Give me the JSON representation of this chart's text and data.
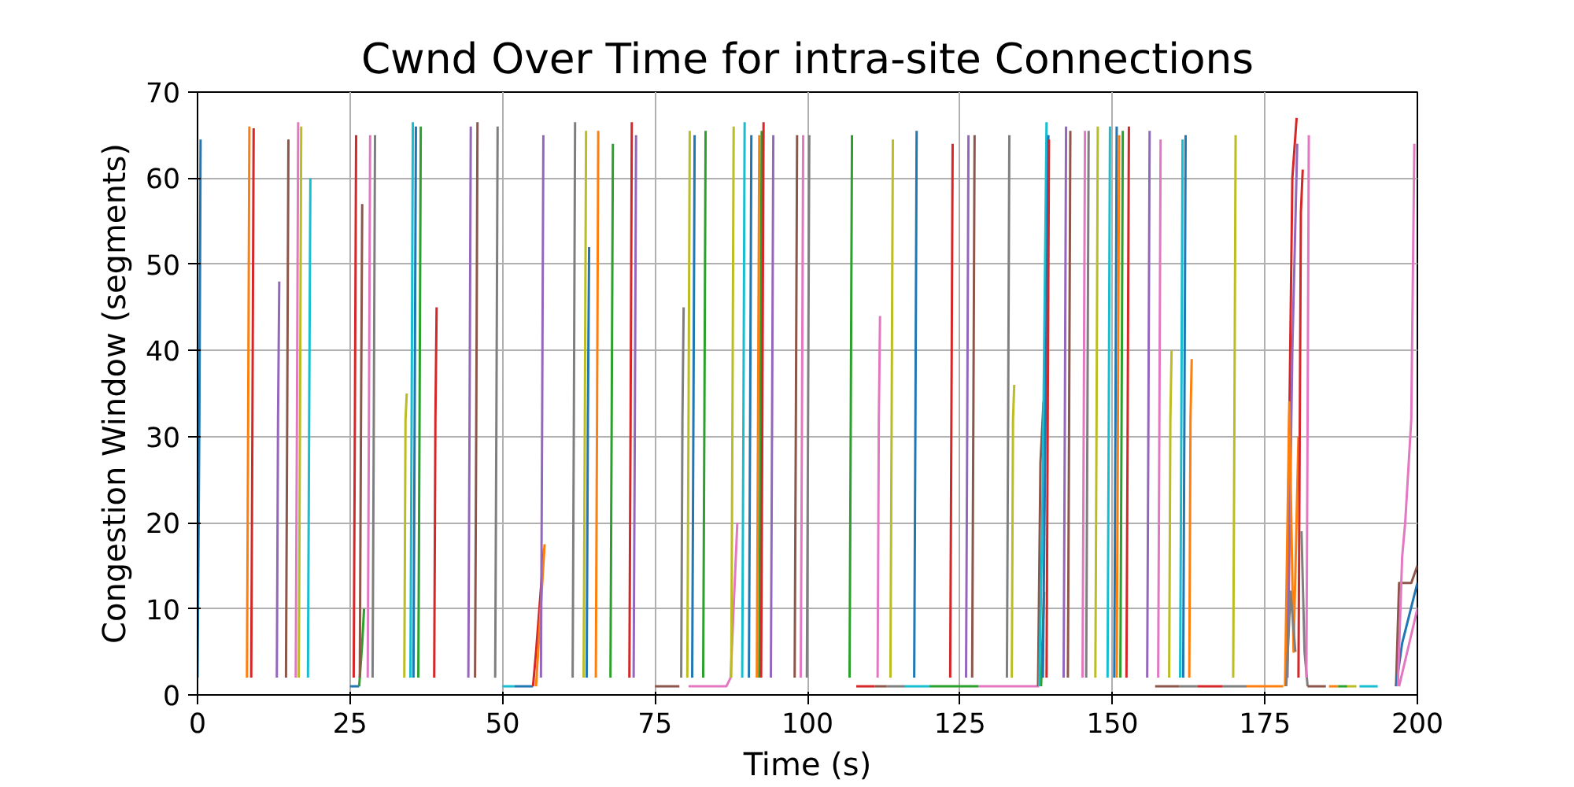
{
  "chart_data": {
    "type": "line",
    "title": "Cwnd Over Time for intra-site Connections",
    "xlabel": "Time (s)",
    "ylabel": "Congestion Window (segments)",
    "xlim": [
      0,
      200
    ],
    "ylim": [
      0,
      70
    ],
    "xticks": [
      0,
      25,
      50,
      75,
      100,
      125,
      150,
      175,
      200
    ],
    "yticks": [
      0,
      10,
      20,
      30,
      40,
      50,
      60,
      70
    ],
    "grid": true,
    "series": [
      {
        "color": "#1f77b4",
        "x": [
          0,
          0.3,
          0.5
        ],
        "values": [
          2,
          32,
          64.5
        ]
      },
      {
        "color": "#ff7f0e",
        "x": [
          8.1,
          8.3,
          8.5
        ],
        "values": [
          2,
          32,
          66
        ]
      },
      {
        "color": "#d62728",
        "x": [
          8.8,
          9.0,
          9.2
        ],
        "values": [
          2,
          32,
          65.8
        ]
      },
      {
        "color": "#9467bd",
        "x": [
          13.0,
          13.2,
          13.4
        ],
        "values": [
          2,
          32,
          48
        ]
      },
      {
        "color": "#8c564b",
        "x": [
          14.5,
          14.7,
          14.9
        ],
        "values": [
          2,
          32,
          64.5
        ]
      },
      {
        "color": "#e377c2",
        "x": [
          16.1,
          16.3,
          16.5
        ],
        "values": [
          2,
          32,
          66.5
        ]
      },
      {
        "color": "#bcbd22",
        "x": [
          16.6,
          16.8,
          17.0
        ],
        "values": [
          2,
          32,
          66
        ]
      },
      {
        "color": "#17becf",
        "x": [
          18.1,
          18.3,
          18.5
        ],
        "values": [
          2,
          32,
          60
        ]
      },
      {
        "color": "#1f77b4",
        "x": [
          25,
          26.5
        ],
        "values": [
          1,
          1
        ]
      },
      {
        "color": "#2ca02c",
        "x": [
          26.5,
          27,
          27.3
        ],
        "values": [
          1,
          6,
          10
        ]
      },
      {
        "color": "#d62728",
        "x": [
          25.6,
          25.8,
          26.0
        ],
        "values": [
          2,
          32,
          65
        ]
      },
      {
        "color": "#8c564b",
        "x": [
          26.6,
          26.8,
          27.0
        ],
        "values": [
          2,
          32,
          57
        ]
      },
      {
        "color": "#e377c2",
        "x": [
          27.9,
          28.1,
          28.3
        ],
        "values": [
          2,
          32,
          65
        ]
      },
      {
        "color": "#7f7f7f",
        "x": [
          28.7,
          28.9,
          29.1
        ],
        "values": [
          2,
          32,
          65
        ]
      },
      {
        "color": "#bcbd22",
        "x": [
          33.9,
          34.1,
          34.3
        ],
        "values": [
          2,
          32,
          35
        ]
      },
      {
        "color": "#17becf",
        "x": [
          34.9,
          35.1,
          35.3
        ],
        "values": [
          2,
          32,
          66.5
        ]
      },
      {
        "color": "#1f77b4",
        "x": [
          35.4,
          35.6,
          35.8
        ],
        "values": [
          2,
          32,
          66
        ]
      },
      {
        "color": "#2ca02c",
        "x": [
          36.2,
          36.4,
          36.6
        ],
        "values": [
          2,
          32,
          66
        ]
      },
      {
        "color": "#d62728",
        "x": [
          38.8,
          39.0,
          39.2
        ],
        "values": [
          2,
          32,
          45
        ]
      },
      {
        "color": "#9467bd",
        "x": [
          44.4,
          44.6,
          44.8
        ],
        "values": [
          2,
          32,
          66
        ]
      },
      {
        "color": "#8c564b",
        "x": [
          45.5,
          45.7,
          45.9
        ],
        "values": [
          2,
          32,
          66.5
        ]
      },
      {
        "color": "#7f7f7f",
        "x": [
          48.8,
          49.0,
          49.2
        ],
        "values": [
          2,
          32,
          66
        ]
      },
      {
        "color": "#17becf",
        "x": [
          50,
          52
        ],
        "values": [
          1,
          1
        ]
      },
      {
        "color": "#1f77b4",
        "x": [
          52,
          55
        ],
        "values": [
          1,
          1
        ]
      },
      {
        "color": "#d62728",
        "x": [
          55,
          55.5,
          56.8
        ],
        "values": [
          1,
          5,
          17
        ]
      },
      {
        "color": "#ff7f0e",
        "x": [
          55.5,
          56.9
        ],
        "values": [
          1,
          17.5
        ]
      },
      {
        "color": "#9467bd",
        "x": [
          56.3,
          56.5,
          56.7
        ],
        "values": [
          2,
          32,
          65
        ]
      },
      {
        "color": "#7f7f7f",
        "x": [
          61.5,
          61.7,
          61.9
        ],
        "values": [
          2,
          32,
          66.5
        ]
      },
      {
        "color": "#bcbd22",
        "x": [
          63.3,
          63.5,
          63.7
        ],
        "values": [
          2,
          32,
          65.5
        ]
      },
      {
        "color": "#1f77b4",
        "x": [
          63.8,
          64.0,
          64.2
        ],
        "values": [
          2,
          32,
          52
        ]
      },
      {
        "color": "#ff7f0e",
        "x": [
          65.3,
          65.5,
          65.7
        ],
        "values": [
          2,
          32,
          65.5
        ]
      },
      {
        "color": "#2ca02c",
        "x": [
          67.7,
          67.9,
          68.1
        ],
        "values": [
          2,
          32,
          64
        ]
      },
      {
        "color": "#d62728",
        "x": [
          70.8,
          71.0,
          71.2
        ],
        "values": [
          2,
          32,
          66.5
        ]
      },
      {
        "color": "#9467bd",
        "x": [
          71.5,
          71.7,
          71.9
        ],
        "values": [
          2,
          32,
          65
        ]
      },
      {
        "color": "#8c564b",
        "x": [
          75,
          79
        ],
        "values": [
          1,
          1
        ]
      },
      {
        "color": "#7f7f7f",
        "x": [
          79.3,
          79.5,
          79.7
        ],
        "values": [
          2,
          32,
          45
        ]
      },
      {
        "color": "#bcbd22",
        "x": [
          80.3,
          80.5,
          80.7
        ],
        "values": [
          2,
          32,
          65.5
        ]
      },
      {
        "color": "#1f77b4",
        "x": [
          81.1,
          81.3,
          81.5
        ],
        "values": [
          2,
          32,
          65
        ]
      },
      {
        "color": "#2ca02c",
        "x": [
          82.9,
          83.1,
          83.3
        ],
        "values": [
          2,
          32,
          65.5
        ]
      },
      {
        "color": "#e377c2",
        "x": [
          80.5,
          86.7,
          87.4,
          88.5
        ],
        "values": [
          1,
          1,
          2,
          20
        ]
      },
      {
        "color": "#bcbd22",
        "x": [
          87.5,
          87.7,
          87.9
        ],
        "values": [
          2,
          32,
          66
        ]
      },
      {
        "color": "#17becf",
        "x": [
          89.3,
          89.5,
          89.7
        ],
        "values": [
          2,
          32,
          66.5
        ]
      },
      {
        "color": "#1f77b4",
        "x": [
          90.4,
          90.6,
          90.8
        ],
        "values": [
          2,
          32,
          65
        ]
      },
      {
        "color": "#ff7f0e",
        "x": [
          91.7,
          91.9,
          92.1
        ],
        "values": [
          2,
          32,
          65
        ]
      },
      {
        "color": "#2ca02c",
        "x": [
          92.1,
          92.3,
          92.5
        ],
        "values": [
          2,
          32,
          65.5
        ]
      },
      {
        "color": "#d62728",
        "x": [
          92.4,
          92.6,
          92.8
        ],
        "values": [
          2,
          32,
          66.5
        ]
      },
      {
        "color": "#9467bd",
        "x": [
          94.0,
          94.2,
          94.4
        ],
        "values": [
          2,
          32,
          65
        ]
      },
      {
        "color": "#8c564b",
        "x": [
          97.9,
          98.1,
          98.3
        ],
        "values": [
          2,
          32,
          65
        ]
      },
      {
        "color": "#e377c2",
        "x": [
          98.9,
          99.1,
          99.3
        ],
        "values": [
          2,
          32,
          65
        ]
      },
      {
        "color": "#7f7f7f",
        "x": [
          99.9,
          100.1,
          100.3
        ],
        "values": [
          2,
          32,
          65
        ]
      },
      {
        "color": "#2ca02c",
        "x": [
          106.9,
          107.1,
          107.3
        ],
        "values": [
          2,
          32,
          65
        ]
      },
      {
        "color": "#e377c2",
        "x": [
          111.5,
          111.7,
          111.9
        ],
        "values": [
          2,
          32,
          44
        ]
      },
      {
        "color": "#bcbd22",
        "x": [
          113.6,
          113.8,
          114.0
        ],
        "values": [
          2,
          32,
          64.5
        ]
      },
      {
        "color": "#1f77b4",
        "x": [
          117.5,
          117.7,
          117.9
        ],
        "values": [
          2,
          32,
          65.5
        ]
      },
      {
        "color": "#d62728",
        "x": [
          123.4,
          123.6,
          123.8
        ],
        "values": [
          2,
          32,
          64
        ]
      },
      {
        "color": "#9467bd",
        "x": [
          126.0,
          126.2,
          126.4
        ],
        "values": [
          2,
          32,
          65
        ]
      },
      {
        "color": "#8c564b",
        "x": [
          127.0,
          127.2,
          127.4
        ],
        "values": [
          2,
          32,
          65
        ]
      },
      {
        "color": "#7f7f7f",
        "x": [
          132.7,
          132.9,
          133.1
        ],
        "values": [
          2,
          32,
          65
        ]
      },
      {
        "color": "#bcbd22",
        "x": [
          133.5,
          133.7,
          133.9
        ],
        "values": [
          2,
          32,
          36
        ]
      },
      {
        "color": "#d62728",
        "x": [
          108,
          111
        ],
        "values": [
          1,
          1
        ]
      },
      {
        "color": "#8c564b",
        "x": [
          111,
          113
        ],
        "values": [
          1,
          1
        ]
      },
      {
        "color": "#7f7f7f",
        "x": [
          113,
          116
        ],
        "values": [
          1,
          1
        ]
      },
      {
        "color": "#17becf",
        "x": [
          116,
          120
        ],
        "values": [
          1,
          1
        ]
      },
      {
        "color": "#2ca02c",
        "x": [
          120,
          128
        ],
        "values": [
          1,
          1
        ]
      },
      {
        "color": "#e377c2",
        "x": [
          128,
          138
        ],
        "values": [
          1,
          1
        ]
      },
      {
        "color": "#2ca02c",
        "x": [
          138.3,
          138.8
        ],
        "values": [
          1,
          12
        ]
      },
      {
        "color": "#8c564b",
        "x": [
          137.8,
          138.2,
          138.7
        ],
        "values": [
          1,
          27,
          34
        ]
      },
      {
        "color": "#17becf",
        "x": [
          138,
          138.5,
          139.2
        ],
        "values": [
          1,
          20,
          66.5
        ]
      },
      {
        "color": "#1f77b4",
        "x": [
          138.6,
          139.5
        ],
        "values": [
          2,
          65
        ]
      },
      {
        "color": "#d62728",
        "x": [
          139.2,
          139.6
        ],
        "values": [
          2,
          64.5
        ]
      },
      {
        "color": "#9467bd",
        "x": [
          142.0,
          142.2,
          142.4
        ],
        "values": [
          2,
          32,
          66
        ]
      },
      {
        "color": "#8c564b",
        "x": [
          142.7,
          142.9,
          143.1
        ],
        "values": [
          2,
          32,
          65.5
        ]
      },
      {
        "color": "#e377c2",
        "x": [
          145.1,
          145.3,
          145.5
        ],
        "values": [
          2,
          32,
          65.5
        ]
      },
      {
        "color": "#7f7f7f",
        "x": [
          145.7,
          145.9,
          146.1
        ],
        "values": [
          2,
          32,
          65.5
        ]
      },
      {
        "color": "#bcbd22",
        "x": [
          147.2,
          147.4,
          147.6
        ],
        "values": [
          2,
          32,
          66
        ]
      },
      {
        "color": "#17becf",
        "x": [
          149.2,
          149.4,
          149.6
        ],
        "values": [
          2,
          32,
          66
        ]
      },
      {
        "color": "#1f77b4",
        "x": [
          150.3,
          150.5,
          150.7
        ],
        "values": [
          2,
          32,
          66
        ]
      },
      {
        "color": "#ff7f0e",
        "x": [
          150.7,
          150.9,
          151.1
        ],
        "values": [
          2,
          32,
          65
        ]
      },
      {
        "color": "#2ca02c",
        "x": [
          151.3,
          151.5,
          151.7
        ],
        "values": [
          2,
          32,
          65.5
        ]
      },
      {
        "color": "#d62728",
        "x": [
          152.3,
          152.5,
          152.7
        ],
        "values": [
          2,
          32,
          66
        ]
      },
      {
        "color": "#9467bd",
        "x": [
          155.7,
          155.9,
          156.1
        ],
        "values": [
          2,
          32,
          65.5
        ]
      },
      {
        "color": "#e377c2",
        "x": [
          157.5,
          157.7,
          157.9
        ],
        "values": [
          2,
          32,
          64.5
        ]
      },
      {
        "color": "#bcbd22",
        "x": [
          159.3,
          159.5,
          159.7
        ],
        "values": [
          2,
          32,
          40
        ]
      },
      {
        "color": "#17becf",
        "x": [
          161.1,
          161.3,
          161.5
        ],
        "values": [
          2,
          32,
          64.5
        ]
      },
      {
        "color": "#1f77b4",
        "x": [
          161.6,
          161.8,
          162.0
        ],
        "values": [
          2,
          32,
          65
        ]
      },
      {
        "color": "#ff7f0e",
        "x": [
          162.6,
          162.8,
          163.0
        ],
        "values": [
          2,
          32,
          39
        ]
      },
      {
        "color": "#bcbd22",
        "x": [
          169.8,
          170.0,
          170.2
        ],
        "values": [
          2,
          32,
          65
        ]
      },
      {
        "color": "#8c564b",
        "x": [
          157,
          161
        ],
        "values": [
          1,
          1
        ]
      },
      {
        "color": "#7f7f7f",
        "x": [
          161,
          164
        ],
        "values": [
          1,
          1
        ]
      },
      {
        "color": "#d62728",
        "x": [
          164,
          168
        ],
        "values": [
          1,
          1
        ]
      },
      {
        "color": "#7f7f7f",
        "x": [
          168,
          172
        ],
        "values": [
          1,
          1
        ]
      },
      {
        "color": "#ff7f0e",
        "x": [
          172,
          178
        ],
        "values": [
          1,
          1
        ]
      },
      {
        "color": "#d62728",
        "x": [
          178.5,
          179.5,
          180.2
        ],
        "values": [
          3,
          60,
          67
        ]
      },
      {
        "color": "#9467bd",
        "x": [
          178.7,
          179.5,
          180.3
        ],
        "values": [
          2,
          40,
          64
        ]
      },
      {
        "color": "#ff7f0e",
        "x": [
          178.3,
          179,
          179.7,
          180.5
        ],
        "values": [
          1,
          34,
          5,
          30
        ]
      },
      {
        "color": "#7f7f7f",
        "x": [
          178.5,
          179.2,
          180
        ],
        "values": [
          1,
          12,
          5
        ]
      },
      {
        "color": "#d62728",
        "x": [
          180.5,
          180.9,
          181.2
        ],
        "values": [
          2,
          56,
          61
        ]
      },
      {
        "color": "#7f7f7f",
        "x": [
          181,
          181.5,
          182
        ],
        "values": [
          19,
          5,
          1
        ]
      },
      {
        "color": "#e377c2",
        "x": [
          181.8,
          182.0,
          182.2
        ],
        "values": [
          2,
          32,
          65
        ]
      },
      {
        "color": "#8c564b",
        "x": [
          182,
          185
        ],
        "values": [
          1,
          1
        ]
      },
      {
        "color": "#ff7f0e",
        "x": [
          185.5,
          187
        ],
        "values": [
          1,
          1
        ]
      },
      {
        "color": "#2ca02c",
        "x": [
          187,
          188.5
        ],
        "values": [
          1,
          1
        ]
      },
      {
        "color": "#bcbd22",
        "x": [
          188.5,
          190
        ],
        "values": [
          1,
          1
        ]
      },
      {
        "color": "#17becf",
        "x": [
          190.5,
          193.5
        ],
        "values": [
          1,
          1
        ]
      },
      {
        "color": "#8c564b",
        "x": [
          196.5,
          197,
          199,
          200
        ],
        "values": [
          1,
          13,
          13,
          15
        ]
      },
      {
        "color": "#1f77b4",
        "x": [
          196.5,
          197.5,
          200
        ],
        "values": [
          1,
          6,
          13
        ]
      },
      {
        "color": "#e377c2",
        "x": [
          197,
          200
        ],
        "values": [
          1,
          10
        ]
      },
      {
        "color": "#e377c2",
        "x": [
          196.8,
          197.5,
          198,
          199,
          199.5
        ],
        "values": [
          1,
          16,
          20,
          32,
          64
        ]
      }
    ]
  }
}
